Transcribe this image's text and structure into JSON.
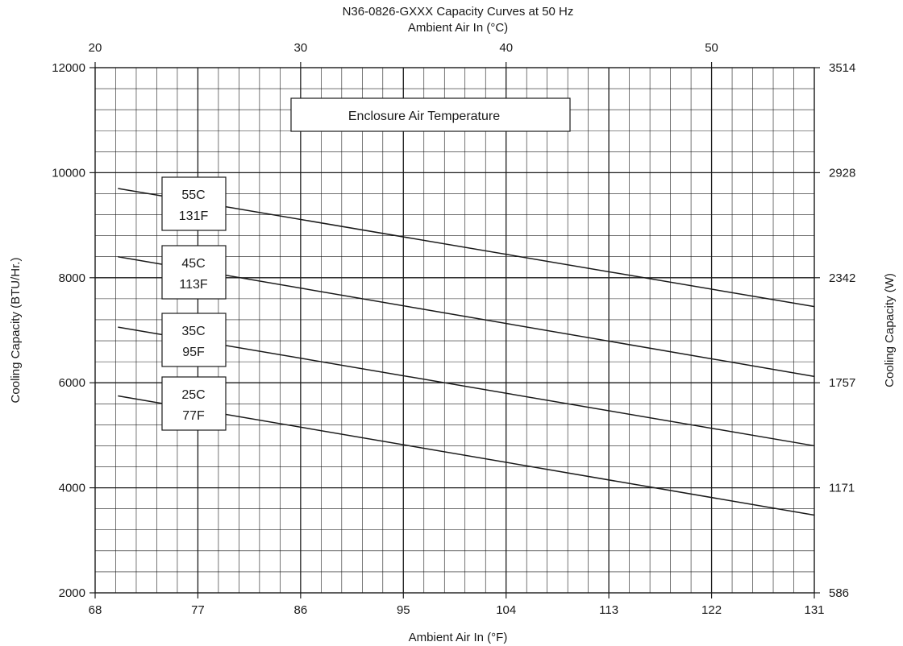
{
  "chart_data": {
    "type": "line",
    "title": "N36-0826-GXXX Capacity Curves at 50 Hz",
    "xlabel": "Ambient Air In (°F)",
    "x2label": "Ambient Air In (°C)",
    "ylabel": "Cooling Capacity (BTU/Hr.)",
    "y2label": "Cooling Capacity (W)",
    "xlim": [
      68,
      131
    ],
    "ylim": [
      2000,
      12000
    ],
    "x2lim": [
      20,
      55
    ],
    "xticks": [
      "68",
      "77",
      "86",
      "95",
      "104",
      "113",
      "122",
      "131"
    ],
    "x2ticks": [
      "20",
      "30",
      "40",
      "50"
    ],
    "yticks": [
      "2000",
      "4000",
      "6000",
      "8000",
      "10000",
      "12000"
    ],
    "y2ticks": [
      "586",
      "1171",
      "1757",
      "2342",
      "2928",
      "3514"
    ],
    "grid": true,
    "legend_title": "Enclosure Air Temperature",
    "series": [
      {
        "name": "55C 131F",
        "label_line1": "55C",
        "label_line2": "131F",
        "x": [
          70,
          131
        ],
        "y": [
          9700,
          7450
        ]
      },
      {
        "name": "45C 113F",
        "label_line1": "45C",
        "label_line2": "113F",
        "x": [
          70,
          131
        ],
        "y": [
          8400,
          6120
        ]
      },
      {
        "name": "35C 95F",
        "label_line1": "35C",
        "label_line2": "95F",
        "x": [
          70,
          131
        ],
        "y": [
          7060,
          4800
        ]
      },
      {
        "name": "25C 77F",
        "label_line1": "25C",
        "label_line2": "77F",
        "x": [
          70,
          131
        ],
        "y": [
          5750,
          3480
        ]
      }
    ]
  }
}
